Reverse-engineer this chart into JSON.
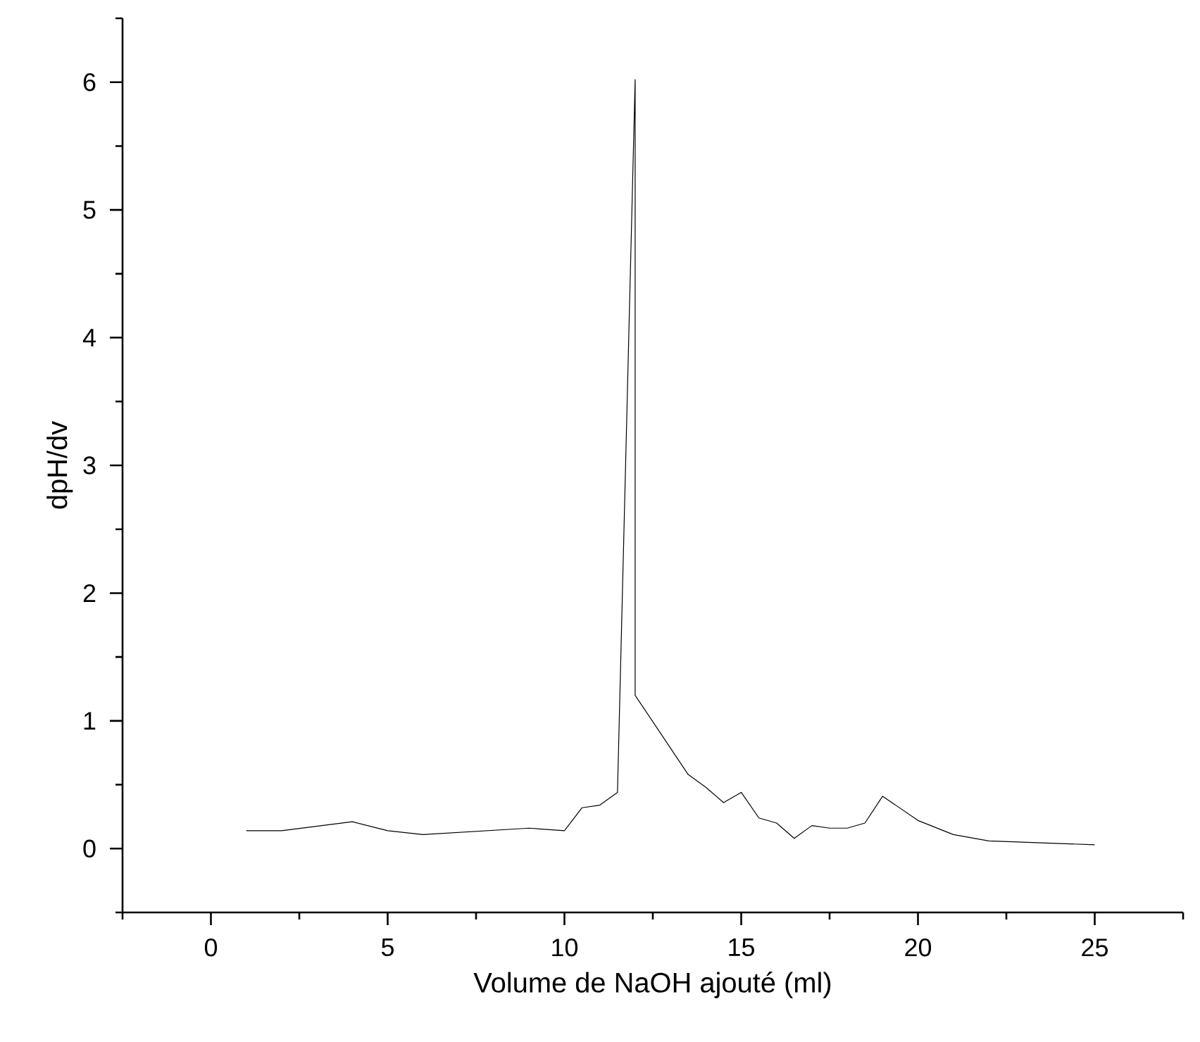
{
  "chart_data": {
    "type": "line",
    "xlabel": "Volume de NaOH ajouté (ml)",
    "ylabel": "dpH/dv",
    "xlim": [
      -2.5,
      27.5
    ],
    "ylim": [
      -0.5,
      6.5
    ],
    "xticks": [
      {
        "value": -2.5,
        "label": null
      },
      0,
      {
        "value": 2.5,
        "label": null
      },
      5,
      {
        "value": 7.5,
        "label": null
      },
      10,
      {
        "value": 12.5,
        "label": null
      },
      15,
      {
        "value": 17.5,
        "label": null
      },
      20,
      {
        "value": 22.5,
        "label": null
      },
      25,
      {
        "value": 27.5,
        "label": null
      }
    ],
    "yticks": [
      {
        "value": -0.5,
        "label": null
      },
      0,
      {
        "value": 0.5,
        "label": null
      },
      1,
      {
        "value": 1.5,
        "label": null
      },
      2,
      {
        "value": 2.5,
        "label": null
      },
      3,
      {
        "value": 3.5,
        "label": null
      },
      4,
      {
        "value": 4.5,
        "label": null
      },
      5,
      {
        "value": 5.5,
        "label": null
      },
      6,
      {
        "value": 6.5,
        "label": null
      }
    ],
    "marker": "none",
    "line_style": "solid",
    "series": [
      {
        "color": "#000000",
        "x": [
          1,
          2,
          4,
          5,
          6,
          9,
          10,
          10.5,
          11,
          11.5,
          12,
          12,
          13.5,
          14,
          14.5,
          15,
          15.5,
          16,
          16.5,
          17,
          17.5,
          18,
          18.5,
          19,
          20,
          21,
          22,
          25
        ],
        "values": [
          0.14,
          0.14,
          0.21,
          0.14,
          0.11,
          0.16,
          0.14,
          0.32,
          0.34,
          0.44,
          6.02,
          1.2,
          0.58,
          0.48,
          0.36,
          0.44,
          0.24,
          0.2,
          0.08,
          0.18,
          0.16,
          0.16,
          0.2,
          0.41,
          0.22,
          0.11,
          0.06,
          0.03
        ]
      }
    ]
  }
}
